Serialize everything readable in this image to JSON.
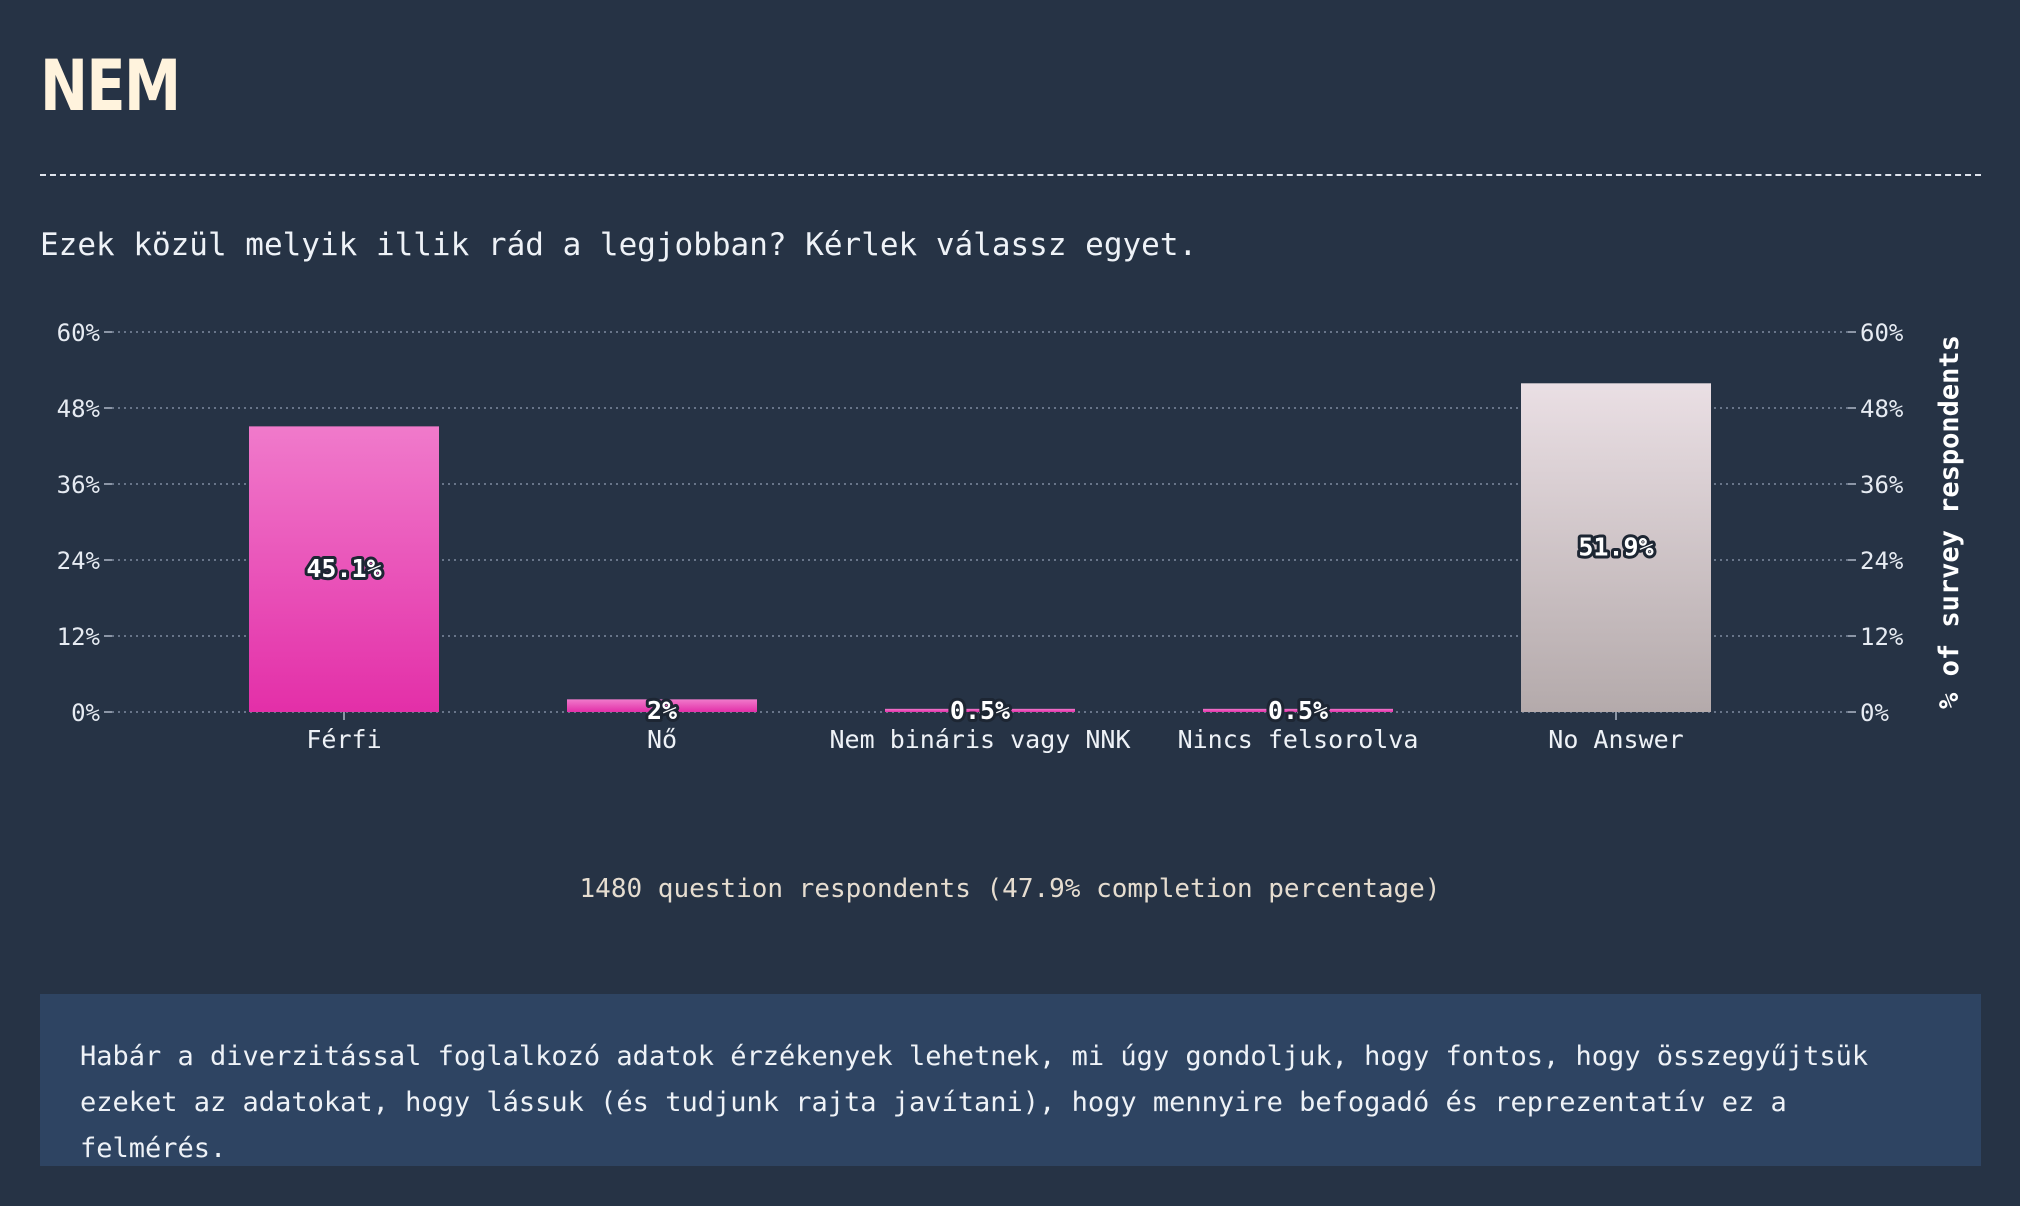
{
  "title": "NEM",
  "question": "Ezek közül melyik illik rád a legjobban? Kérlek válassz egyet.",
  "footnote": "1480 question respondents (47.9% completion percentage)",
  "note": "Habár a diverzitással foglalkozó adatok érzékenyek lehetnek, mi úgy gondoljuk, hogy fontos, hogy összegyűjtsük ezeket az adatokat, hogy lássuk (és tudjunk rajta javítani), hogy mennyire befogadó és reprezentatív ez a felmérés.",
  "colors": {
    "background": "#263345",
    "bar_pink_top": "#f07acb",
    "bar_pink_bottom": "#e32fa8",
    "bar_grey_top": "#eadfe4",
    "bar_grey_bottom": "#b4aaab",
    "note_background": "#2e4462"
  },
  "chart_data": {
    "type": "bar",
    "categories": [
      "Férfi",
      "Nő",
      "Nem bináris vagy NNK",
      "Nincs felsorolva",
      "No Answer"
    ],
    "values": [
      45.1,
      2,
      0.5,
      0.5,
      51.9
    ],
    "value_labels": [
      "45.1%",
      "2%",
      "0.5%",
      "0.5%",
      "51.9%"
    ],
    "bar_colors": [
      "pink",
      "pink",
      "pink",
      "pink",
      "grey"
    ],
    "y_ticks": [
      "0%",
      "12%",
      "24%",
      "36%",
      "48%",
      "60%"
    ],
    "ylim": [
      0,
      60
    ],
    "ylabel_right": "% of survey respondents",
    "grid": true
  }
}
